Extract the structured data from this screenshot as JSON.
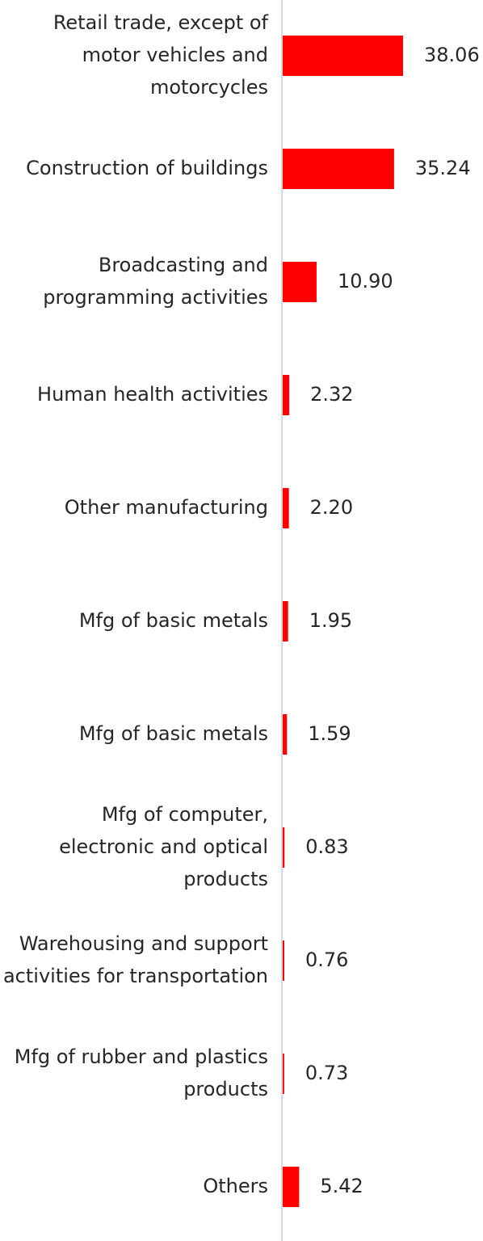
{
  "chart_data": {
    "type": "bar",
    "orientation": "horizontal",
    "categories": [
      "Retail trade, except of motor vehicles and motorcycles",
      "Construction of buildings",
      "Broadcasting and programming activities",
      "Human health activities",
      "Other manufacturing",
      "Mfg of basic metals",
      "Mfg of basic metals",
      "Mfg of computer, electronic and optical products",
      "Warehousing and support activities for transportation",
      "Mfg of rubber and plastics products",
      "Others"
    ],
    "values": [
      38.06,
      35.24,
      10.9,
      2.32,
      2.2,
      1.95,
      1.59,
      0.83,
      0.76,
      0.73,
      5.42
    ],
    "value_labels": [
      "38.06",
      "35.24",
      "10.90",
      "2.32",
      "2.20",
      "1.95",
      "1.59",
      "0.83",
      "0.76",
      "0.73",
      "5.42"
    ],
    "category_lines": [
      [
        "Retail trade, except of",
        "motor vehicles and",
        "motorcycles"
      ],
      [
        "Construction of buildings"
      ],
      [
        "Broadcasting and",
        "programming activities"
      ],
      [
        "Human health activities"
      ],
      [
        "Other manufacturing"
      ],
      [
        "Mfg of basic metals"
      ],
      [
        "Mfg of basic metals"
      ],
      [
        "Mfg of computer,",
        "electronic and optical",
        "products"
      ],
      [
        "Warehousing and support",
        "activities for transportation"
      ],
      [
        "Mfg of rubber and plastics",
        "products"
      ],
      [
        "Others"
      ]
    ],
    "title": "",
    "xlabel": "",
    "ylabel": "",
    "xlim": [
      0,
      40
    ],
    "grid": false,
    "legend": "none",
    "colors": {
      "bar": "#ff0000",
      "axis": "#d9d9d9",
      "text": "#262626"
    }
  }
}
